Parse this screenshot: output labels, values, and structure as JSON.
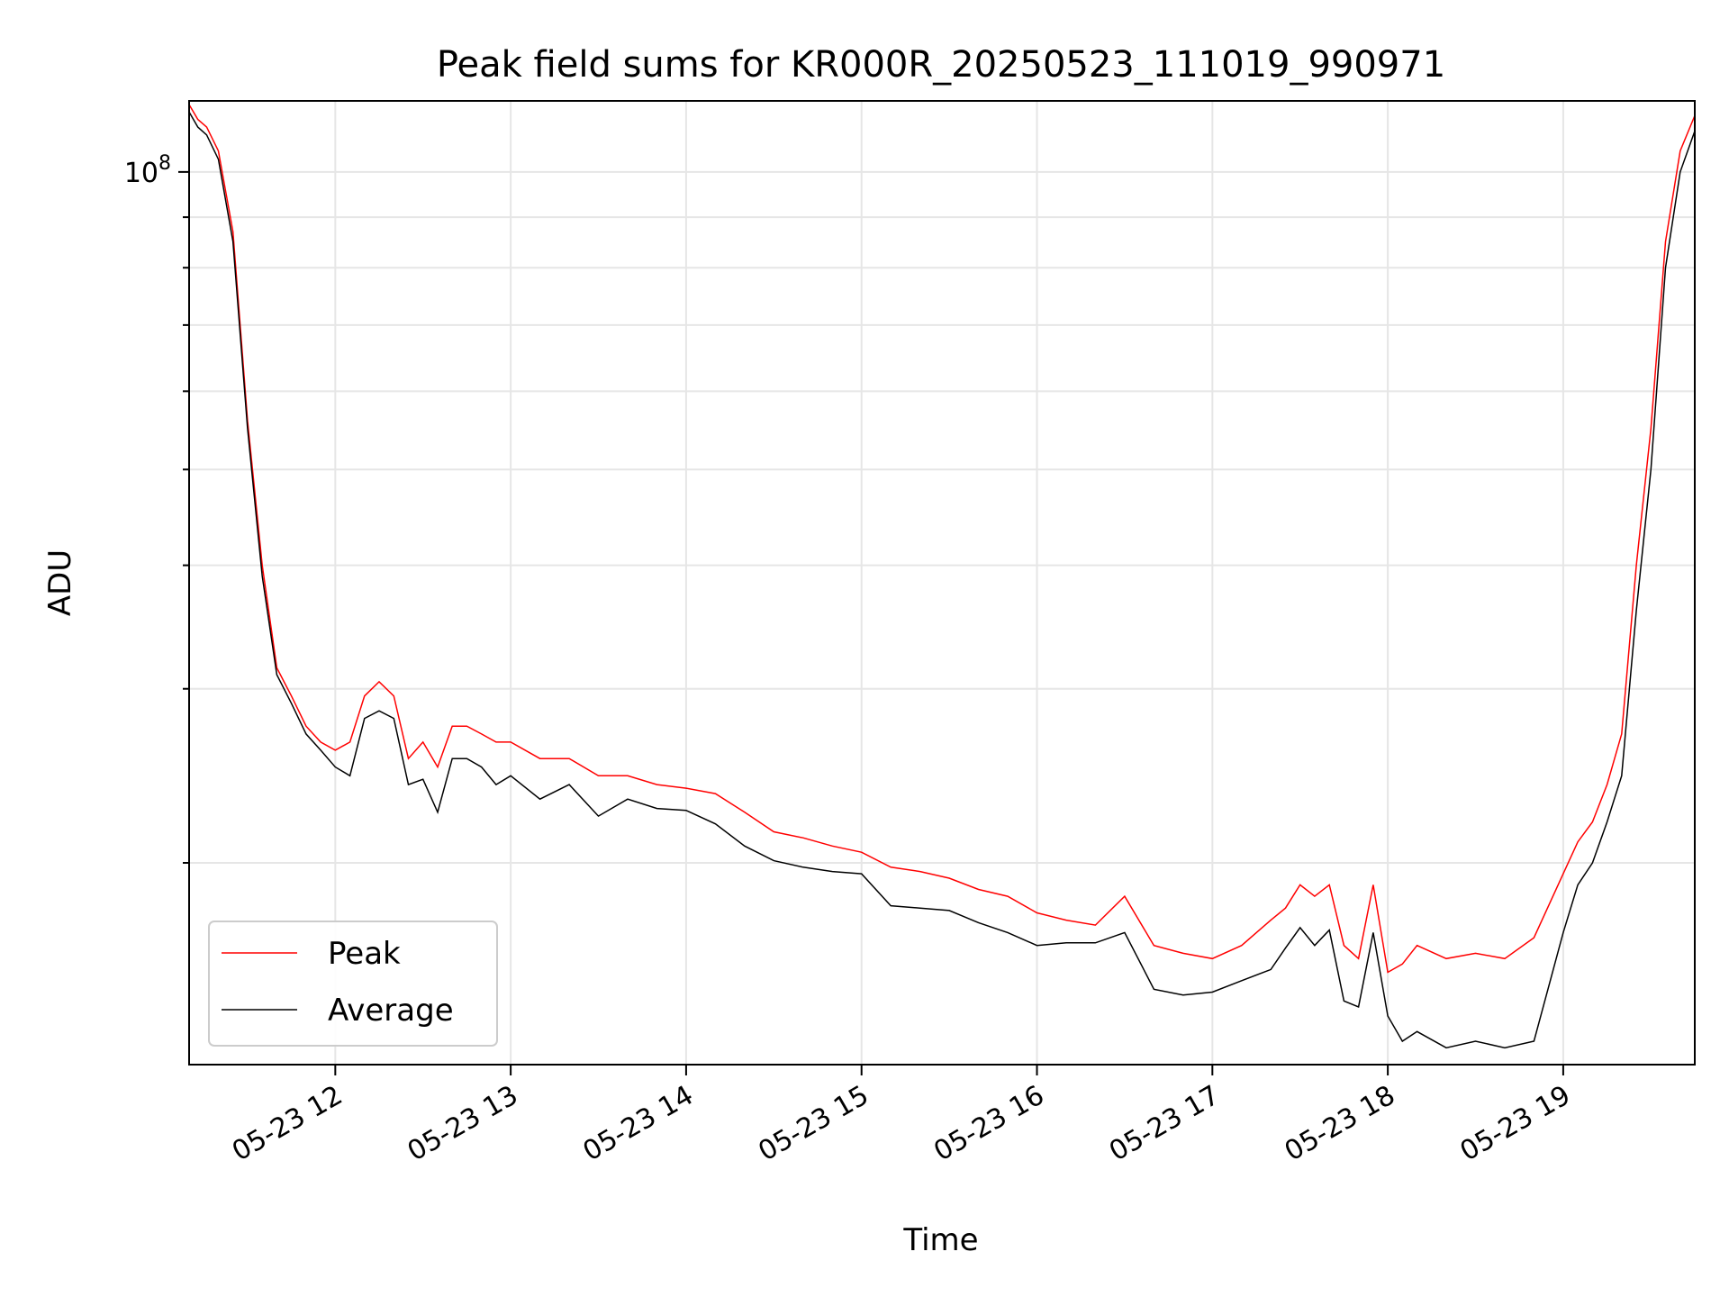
{
  "chart_data": {
    "type": "line",
    "title": "Peak field sums for KR000R_20250523_111019_990971",
    "xlabel": "Time",
    "ylabel": "ADU",
    "x_ticks": [
      "05-23 12",
      "05-23 13",
      "05-23 14",
      "05-23 15",
      "05-23 16",
      "05-23 17",
      "05-23 18",
      "05-23 19"
    ],
    "x_range": [
      "2025-05-23T11:10",
      "2025-05-23T19:45"
    ],
    "y_scale": "log",
    "y_ticks": [
      {
        "value": 100000000,
        "base": "10",
        "exp": "8"
      }
    ],
    "ylim": [
      12500000,
      118000000
    ],
    "grid": true,
    "legend": "lower-left",
    "colors": {
      "Peak": "#ff0000",
      "Average": "#000000"
    },
    "series": [
      {
        "name": "Average",
        "x": [
          "2025-05-23T11:10",
          "2025-05-23T11:13",
          "2025-05-23T11:16",
          "2025-05-23T11:20",
          "2025-05-23T11:25",
          "2025-05-23T11:30",
          "2025-05-23T11:35",
          "2025-05-23T11:40",
          "2025-05-23T11:45",
          "2025-05-23T11:50",
          "2025-05-23T11:55",
          "2025-05-23T12:00",
          "2025-05-23T12:05",
          "2025-05-23T12:10",
          "2025-05-23T12:15",
          "2025-05-23T12:20",
          "2025-05-23T12:25",
          "2025-05-23T12:30",
          "2025-05-23T12:35",
          "2025-05-23T12:40",
          "2025-05-23T12:45",
          "2025-05-23T12:50",
          "2025-05-23T12:55",
          "2025-05-23T13:00",
          "2025-05-23T13:10",
          "2025-05-23T13:20",
          "2025-05-23T13:30",
          "2025-05-23T13:40",
          "2025-05-23T13:50",
          "2025-05-23T14:00",
          "2025-05-23T14:10",
          "2025-05-23T14:20",
          "2025-05-23T14:30",
          "2025-05-23T14:40",
          "2025-05-23T14:50",
          "2025-05-23T15:00",
          "2025-05-23T15:10",
          "2025-05-23T15:20",
          "2025-05-23T15:30",
          "2025-05-23T15:40",
          "2025-05-23T15:50",
          "2025-05-23T16:00",
          "2025-05-23T16:10",
          "2025-05-23T16:20",
          "2025-05-23T16:30",
          "2025-05-23T16:40",
          "2025-05-23T16:50",
          "2025-05-23T17:00",
          "2025-05-23T17:10",
          "2025-05-23T17:20",
          "2025-05-23T17:25",
          "2025-05-23T17:30",
          "2025-05-23T17:35",
          "2025-05-23T17:40",
          "2025-05-23T17:45",
          "2025-05-23T17:50",
          "2025-05-23T17:55",
          "2025-05-23T18:00",
          "2025-05-23T18:05",
          "2025-05-23T18:10",
          "2025-05-23T18:20",
          "2025-05-23T18:30",
          "2025-05-23T18:40",
          "2025-05-23T18:50",
          "2025-05-23T19:00",
          "2025-05-23T19:05",
          "2025-05-23T19:10",
          "2025-05-23T19:15",
          "2025-05-23T19:20",
          "2025-05-23T19:25",
          "2025-05-23T19:30",
          "2025-05-23T19:35",
          "2025-05-23T19:40",
          "2025-05-23T19:45"
        ],
        "values": [
          115000000,
          111000000,
          109000000,
          103000000,
          85000000,
          55000000,
          39000000,
          31000000,
          29000000,
          27000000,
          26000000,
          25000000,
          24500000,
          28000000,
          28500000,
          28000000,
          24000000,
          24300000,
          22500000,
          25500000,
          25500000,
          25000000,
          24000000,
          24500000,
          23200000,
          24000000,
          22300000,
          23200000,
          22700000,
          22600000,
          21900000,
          20800000,
          20100000,
          19800000,
          19600000,
          19500000,
          18100000,
          18000000,
          17900000,
          17400000,
          17000000,
          16500000,
          16600000,
          16600000,
          17000000,
          14900000,
          14700000,
          14800000,
          15200000,
          15600000,
          16400000,
          17200000,
          16500000,
          17100000,
          14500000,
          14300000,
          17000000,
          14000000,
          13200000,
          13500000,
          13000000,
          13200000,
          13000000,
          13200000,
          17000000,
          19000000,
          20000000,
          22000000,
          24500000,
          36000000,
          50000000,
          80000000,
          100000000,
          110000000
        ]
      },
      {
        "name": "Peak",
        "x": [
          "2025-05-23T11:10",
          "2025-05-23T11:13",
          "2025-05-23T11:16",
          "2025-05-23T11:20",
          "2025-05-23T11:25",
          "2025-05-23T11:30",
          "2025-05-23T11:35",
          "2025-05-23T11:40",
          "2025-05-23T11:45",
          "2025-05-23T11:50",
          "2025-05-23T11:55",
          "2025-05-23T12:00",
          "2025-05-23T12:05",
          "2025-05-23T12:10",
          "2025-05-23T12:15",
          "2025-05-23T12:20",
          "2025-05-23T12:25",
          "2025-05-23T12:30",
          "2025-05-23T12:35",
          "2025-05-23T12:40",
          "2025-05-23T12:45",
          "2025-05-23T12:50",
          "2025-05-23T12:55",
          "2025-05-23T13:00",
          "2025-05-23T13:10",
          "2025-05-23T13:20",
          "2025-05-23T13:30",
          "2025-05-23T13:40",
          "2025-05-23T13:50",
          "2025-05-23T14:00",
          "2025-05-23T14:10",
          "2025-05-23T14:20",
          "2025-05-23T14:30",
          "2025-05-23T14:40",
          "2025-05-23T14:50",
          "2025-05-23T15:00",
          "2025-05-23T15:10",
          "2025-05-23T15:20",
          "2025-05-23T15:30",
          "2025-05-23T15:40",
          "2025-05-23T15:50",
          "2025-05-23T16:00",
          "2025-05-23T16:10",
          "2025-05-23T16:20",
          "2025-05-23T16:30",
          "2025-05-23T16:40",
          "2025-05-23T16:50",
          "2025-05-23T17:00",
          "2025-05-23T17:10",
          "2025-05-23T17:20",
          "2025-05-23T17:25",
          "2025-05-23T17:30",
          "2025-05-23T17:35",
          "2025-05-23T17:40",
          "2025-05-23T17:45",
          "2025-05-23T17:50",
          "2025-05-23T17:55",
          "2025-05-23T18:00",
          "2025-05-23T18:05",
          "2025-05-23T18:10",
          "2025-05-23T18:20",
          "2025-05-23T18:30",
          "2025-05-23T18:40",
          "2025-05-23T18:50",
          "2025-05-23T19:00",
          "2025-05-23T19:05",
          "2025-05-23T19:10",
          "2025-05-23T19:15",
          "2025-05-23T19:20",
          "2025-05-23T19:25",
          "2025-05-23T19:30",
          "2025-05-23T19:35",
          "2025-05-23T19:40",
          "2025-05-23T19:45"
        ],
        "values": [
          117000000,
          113000000,
          111000000,
          105000000,
          87000000,
          56000000,
          40000000,
          31500000,
          29500000,
          27500000,
          26500000,
          26000000,
          26500000,
          29500000,
          30500000,
          29500000,
          25500000,
          26500000,
          25000000,
          27500000,
          27500000,
          27000000,
          26500000,
          26500000,
          25500000,
          25500000,
          24500000,
          24500000,
          24000000,
          23800000,
          23500000,
          22500000,
          21500000,
          21200000,
          20800000,
          20500000,
          19800000,
          19600000,
          19300000,
          18800000,
          18500000,
          17800000,
          17500000,
          17300000,
          18500000,
          16500000,
          16200000,
          16000000,
          16500000,
          17500000,
          18000000,
          19000000,
          18500000,
          19000000,
          16500000,
          16000000,
          19000000,
          15500000,
          15800000,
          16500000,
          16000000,
          16200000,
          16000000,
          16800000,
          19500000,
          21000000,
          22000000,
          24000000,
          27000000,
          40000000,
          55000000,
          85000000,
          105000000,
          114000000
        ]
      }
    ]
  }
}
